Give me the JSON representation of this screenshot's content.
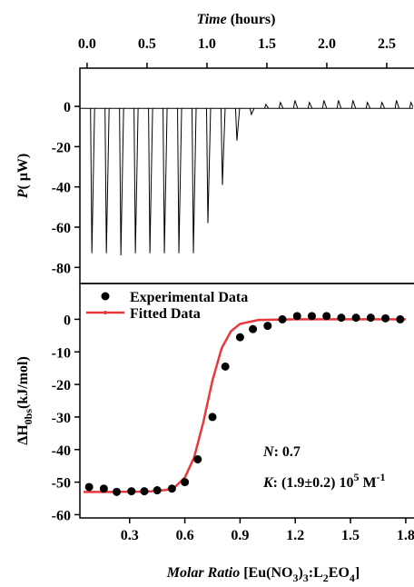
{
  "chart_data": [
    {
      "type": "spikes",
      "title_parts": [
        {
          "text": "Time",
          "italic": true
        },
        {
          "text": " (hours)"
        }
      ],
      "ylabel_parts": [
        {
          "text": "P",
          "italic": true
        },
        {
          "text": "( μW)"
        }
      ],
      "x": [
        0.04,
        0.161,
        0.282,
        0.403,
        0.524,
        0.645,
        0.766,
        0.887,
        1.008,
        1.129,
        1.25,
        1.371,
        1.492,
        1.613,
        1.734,
        1.855,
        1.976,
        2.097,
        2.218,
        2.339,
        2.46,
        2.581,
        2.702
      ],
      "values": [
        -73,
        -73,
        -74,
        -73,
        -73,
        -73,
        -73,
        -73,
        -58,
        -39,
        -17,
        -4,
        1,
        2,
        3,
        2,
        3,
        3,
        3,
        2,
        2,
        3,
        2
      ],
      "baseline": -1,
      "color": "#000000",
      "xlim": [
        -0.06,
        2.72
      ],
      "xticks": [
        {
          "value": 0,
          "label": "0.0"
        },
        0.5,
        {
          "value": 1,
          "label": "1.0"
        },
        1.5,
        {
          "value": 2,
          "label": "2.0"
        },
        2.5
      ],
      "ylim": [
        -88,
        19
      ],
      "yticks": [
        -80,
        -60,
        -40,
        -20,
        0
      ]
    },
    {
      "type": "scatter",
      "xlabel_parts": [
        {
          "text": "Molar Ratio",
          "italic": true
        },
        {
          "text": " [Eu(NO"
        },
        {
          "text": "3",
          "sub": true
        },
        {
          "text": ")"
        },
        {
          "text": "3",
          "sub": true
        },
        {
          "text": ":L"
        },
        {
          "text": "2",
          "sub": true
        },
        {
          "text": "EO"
        },
        {
          "text": "4",
          "sub": true
        },
        {
          "text": "]"
        }
      ],
      "ylabel_parts": [
        {
          "text": "ΔH"
        },
        {
          "text": "0bs",
          "sub": true
        },
        {
          "text": "(kJ/mol)"
        }
      ],
      "series": [
        {
          "name": "Experimental Data",
          "color": "#000000",
          "x": [
            0.08,
            0.16,
            0.23,
            0.31,
            0.38,
            0.45,
            0.53,
            0.6,
            0.67,
            0.75,
            0.82,
            0.9,
            0.97,
            1.05,
            1.13,
            1.21,
            1.29,
            1.37,
            1.45,
            1.53,
            1.61,
            1.69,
            1.77
          ],
          "values": [
            -51.5,
            -52,
            -53,
            -52.8,
            -52.8,
            -52.5,
            -52,
            -50,
            -43,
            -30,
            -14.5,
            -5.5,
            -3,
            -2,
            0,
            1,
            1,
            1,
            0.5,
            0.5,
            0.5,
            0.3,
            0
          ]
        },
        {
          "name": "Fitted Data",
          "color": "#e8383d",
          "x": [
            0.05,
            0.2,
            0.4,
            0.5,
            0.55,
            0.6,
            0.65,
            0.7,
            0.75,
            0.8,
            0.85,
            0.9,
            1.0,
            1.2,
            1.5,
            1.8
          ],
          "values": [
            -53,
            -53,
            -52.9,
            -52.4,
            -51.3,
            -48.6,
            -42.5,
            -31.7,
            -18.8,
            -8.9,
            -3.7,
            -1.4,
            -0.2,
            0,
            0,
            0
          ]
        }
      ],
      "annotations": [
        [
          {
            "text": "N",
            "italic": true
          },
          {
            "text": ": 0.7"
          }
        ],
        [
          {
            "text": "K",
            "italic": true
          },
          {
            "text": ": (1.9±0.2) 10"
          },
          {
            "text": "5",
            "sup": true
          },
          {
            "text": " M"
          },
          {
            "text": "-1",
            "sup": true
          }
        ]
      ],
      "xlim": [
        0.03,
        1.84
      ],
      "xticks": [
        0.3,
        0.6,
        0.9,
        1.2,
        1.5,
        1.8
      ],
      "ylim": [
        -61,
        11
      ],
      "yticks": [
        -60,
        -50,
        -40,
        -30,
        -20,
        -10,
        0
      ]
    }
  ]
}
